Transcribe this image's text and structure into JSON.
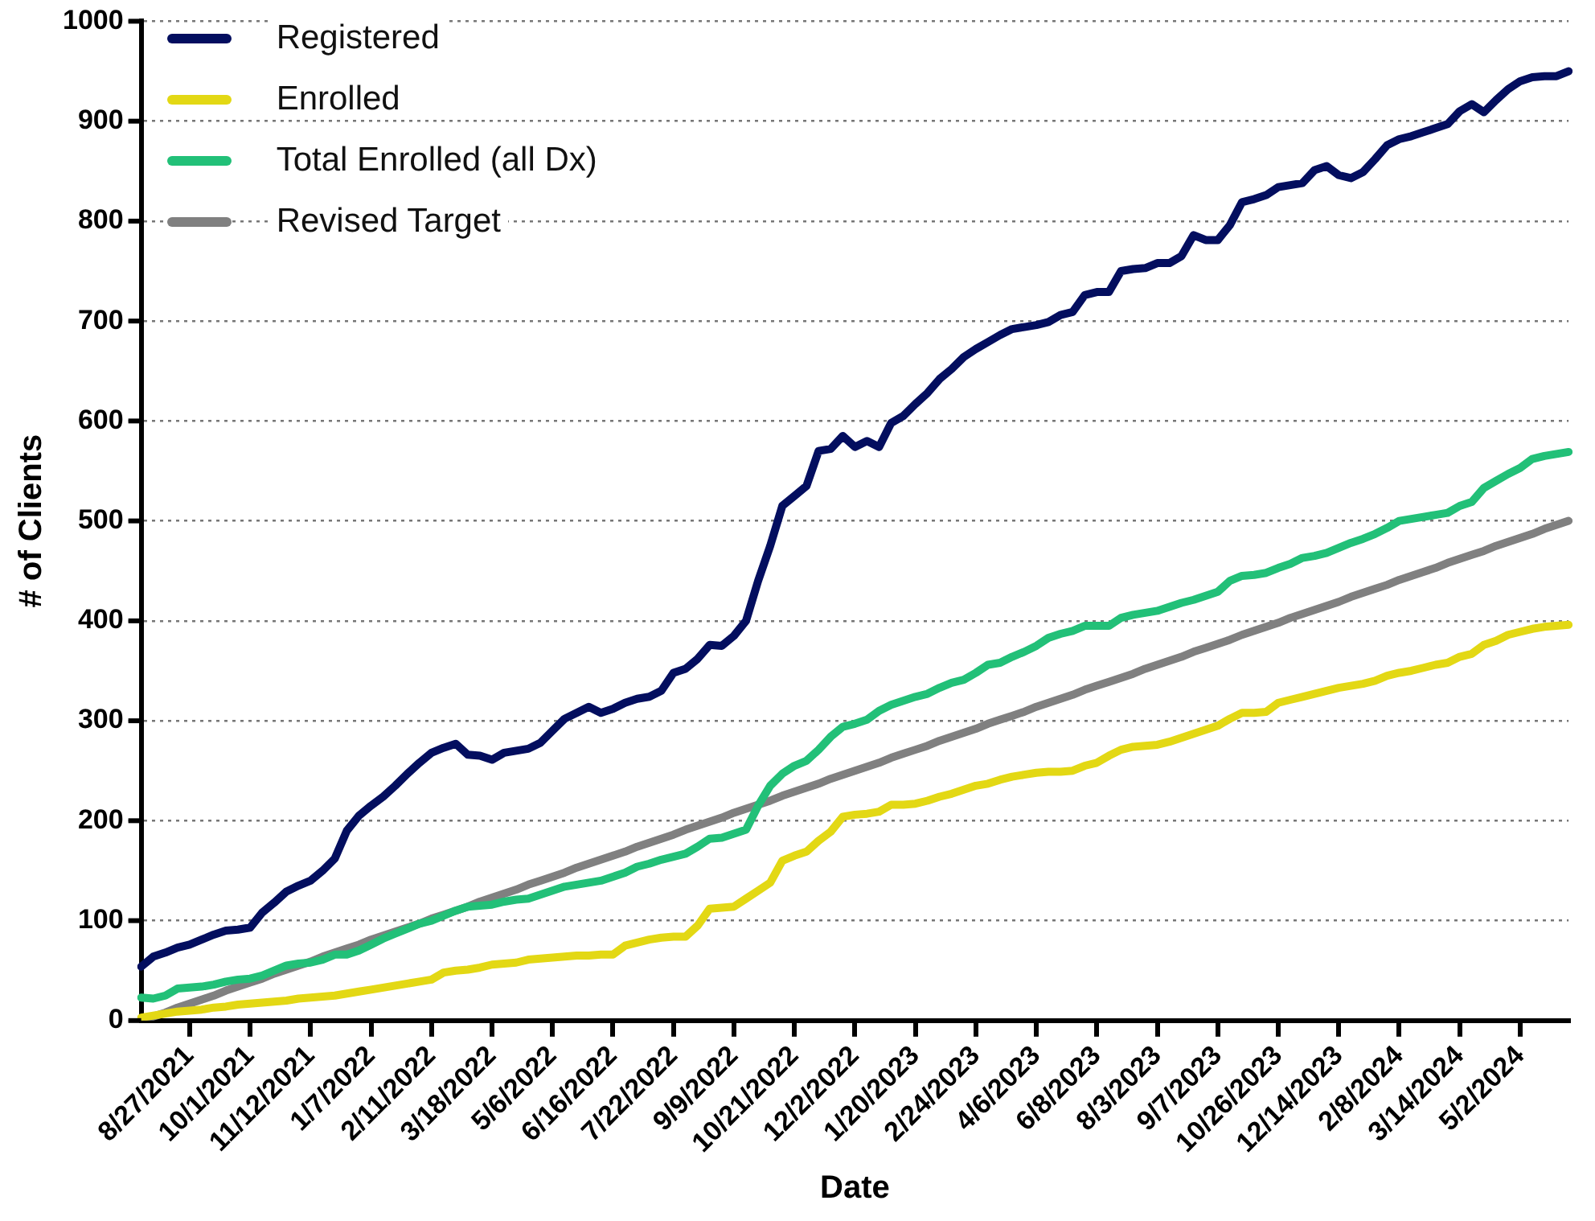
{
  "chart_data": {
    "type": "line",
    "xlabel": "Date",
    "ylabel": "# of Clients",
    "categories": [
      null,
      null,
      null,
      null,
      "8/27/2021",
      null,
      null,
      null,
      null,
      "10/1/2021",
      null,
      null,
      null,
      null,
      "11/12/2021",
      null,
      null,
      null,
      null,
      "1/7/2022",
      null,
      null,
      null,
      null,
      "2/11/2022",
      null,
      null,
      null,
      null,
      "3/18/2022",
      null,
      null,
      null,
      null,
      "5/6/2022",
      null,
      null,
      null,
      null,
      "6/16/2022",
      null,
      null,
      null,
      null,
      "7/22/2022",
      null,
      null,
      null,
      null,
      "9/9/2022",
      null,
      null,
      null,
      null,
      "10/21/2022",
      null,
      null,
      null,
      null,
      "12/2/2022",
      null,
      null,
      null,
      null,
      "1/20/2023",
      null,
      null,
      null,
      null,
      "2/24/2023",
      null,
      null,
      null,
      null,
      "4/6/2023",
      null,
      null,
      null,
      null,
      "6/8/2023",
      null,
      null,
      null,
      null,
      "8/3/2023",
      null,
      null,
      null,
      null,
      "9/7/2023",
      null,
      null,
      null,
      null,
      "10/26/2023",
      null,
      null,
      null,
      null,
      "12/14/2023",
      null,
      null,
      null,
      null,
      "2/8/2024",
      null,
      null,
      null,
      null,
      "3/14/2024",
      null,
      null,
      null,
      null,
      "5/2/2024",
      null,
      null,
      null,
      null
    ],
    "series": [
      {
        "name": "Registered",
        "color": "#030e5f",
        "values": [
          54,
          64,
          68,
          73,
          76,
          81,
          86,
          90,
          91,
          93,
          108,
          118,
          129,
          135,
          140,
          150,
          162,
          190,
          205,
          215,
          224,
          235,
          247,
          258,
          268,
          273,
          277,
          266,
          265,
          261,
          268,
          270,
          272,
          278,
          290,
          302,
          308,
          314,
          308,
          312,
          318,
          322,
          324,
          330,
          348,
          352,
          362,
          376,
          375,
          385,
          400,
          440,
          475,
          515,
          525,
          535,
          570,
          572,
          585,
          574,
          580,
          574,
          598,
          605,
          617,
          628,
          642,
          652,
          664,
          672,
          679,
          686,
          692,
          694,
          696,
          699,
          706,
          709,
          726,
          729,
          729,
          750,
          752,
          753,
          758,
          758,
          765,
          786,
          781,
          781,
          796,
          819,
          822,
          826,
          834,
          836,
          838,
          851,
          855,
          846,
          843,
          849,
          862,
          876,
          882,
          885,
          889,
          893,
          897,
          910,
          917,
          909,
          921,
          932,
          940,
          944,
          945,
          945,
          950
        ]
      },
      {
        "name": "Enrolled",
        "color": "#e3d814",
        "values": [
          3,
          5,
          7,
          9,
          10,
          11,
          13,
          14,
          16,
          17,
          18,
          19,
          20,
          22,
          23,
          24,
          25,
          27,
          29,
          31,
          33,
          35,
          37,
          39,
          41,
          48,
          50,
          51,
          53,
          56,
          57,
          58,
          61,
          62,
          63,
          64,
          65,
          65,
          66,
          66,
          75,
          78,
          81,
          83,
          84,
          84,
          95,
          112,
          113,
          114,
          122,
          130,
          138,
          160,
          165,
          169,
          180,
          189,
          204,
          206,
          207,
          209,
          216,
          216,
          217,
          220,
          224,
          227,
          231,
          235,
          237,
          241,
          244,
          246,
          248,
          249,
          249,
          250,
          255,
          258,
          265,
          271,
          274,
          275,
          276,
          279,
          283,
          287,
          291,
          295,
          302,
          308,
          308,
          309,
          318,
          321,
          324,
          327,
          330,
          333,
          335,
          337,
          340,
          345,
          348,
          350,
          353,
          356,
          358,
          364,
          367,
          376,
          380,
          386,
          389,
          392,
          394,
          395,
          396
        ]
      },
      {
        "name": "Total Enrolled (all Dx)",
        "color": "#22c078",
        "values": [
          23,
          22,
          25,
          32,
          33,
          34,
          36,
          39,
          41,
          42,
          45,
          50,
          55,
          57,
          58,
          61,
          66,
          66,
          70,
          76,
          82,
          87,
          92,
          97,
          100,
          105,
          110,
          114,
          115,
          116,
          119,
          121,
          122,
          126,
          130,
          134,
          136,
          138,
          140,
          144,
          148,
          154,
          157,
          161,
          164,
          167,
          174,
          182,
          183,
          187,
          191,
          215,
          235,
          247,
          255,
          260,
          271,
          284,
          294,
          297,
          301,
          310,
          316,
          320,
          324,
          327,
          333,
          338,
          341,
          348,
          356,
          358,
          364,
          369,
          375,
          383,
          387,
          390,
          395,
          395,
          395,
          403,
          406,
          408,
          410,
          414,
          418,
          421,
          425,
          429,
          440,
          445,
          446,
          448,
          453,
          457,
          463,
          465,
          468,
          473,
          478,
          482,
          487,
          493,
          500,
          502,
          504,
          506,
          508,
          515,
          519,
          533,
          540,
          547,
          553,
          562,
          565,
          567,
          569
        ]
      },
      {
        "name": "Revised Target",
        "color": "#808080",
        "values": [
          0,
          4,
          8,
          13,
          17,
          21,
          25,
          30,
          34,
          38,
          42,
          47,
          51,
          55,
          59,
          64,
          68,
          72,
          76,
          81,
          85,
          89,
          93,
          97,
          102,
          106,
          110,
          114,
          119,
          123,
          127,
          131,
          136,
          140,
          144,
          148,
          153,
          157,
          161,
          165,
          169,
          174,
          178,
          182,
          186,
          191,
          195,
          199,
          203,
          208,
          212,
          216,
          220,
          225,
          229,
          233,
          237,
          242,
          246,
          250,
          254,
          258,
          263,
          267,
          271,
          275,
          280,
          284,
          288,
          292,
          297,
          301,
          305,
          309,
          314,
          318,
          322,
          326,
          331,
          335,
          339,
          343,
          347,
          352,
          356,
          360,
          364,
          369,
          373,
          377,
          381,
          386,
          390,
          394,
          398,
          403,
          407,
          411,
          415,
          419,
          424,
          428,
          432,
          436,
          441,
          445,
          449,
          453,
          458,
          462,
          466,
          470,
          475,
          479,
          483,
          487,
          492,
          496,
          500
        ]
      }
    ],
    "ylim": [
      0,
      1000
    ],
    "yticks": [
      0,
      100,
      200,
      300,
      400,
      500,
      600,
      700,
      800,
      900,
      1000
    ],
    "grid": "y",
    "legend": "top left",
    "marker": "none",
    "line_style": "solid"
  }
}
